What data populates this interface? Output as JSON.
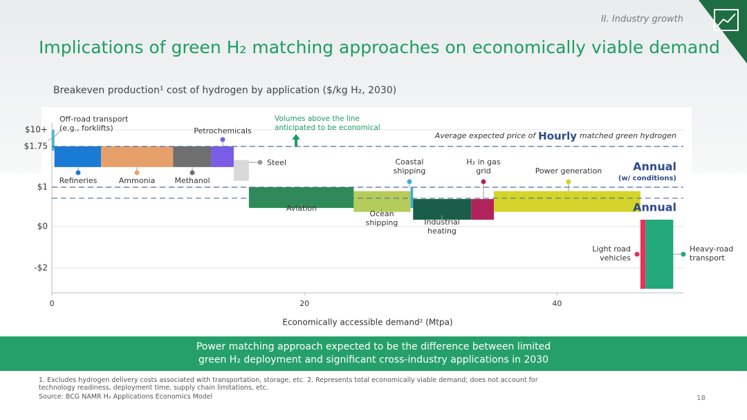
{
  "slide": {
    "section": "II. Industry growth",
    "title": "Implications of green H₂ matching approaches on economically viable demand",
    "subtitle": "Breakeven production¹ cost of hydrogen by application ($/kg H₂, 2030)",
    "banner": "Power matching approach expected to be the difference between limited green H₂ deployment and significant cross-industry applications in 2030",
    "footnotes": "1. Excludes hydrogen delivery costs associated with transportation, storage, etc. 2. Represents total economically viable demand; does not account for technology readiness, deployment time, supply chain limitations, etc.",
    "source": "Source: BCG NAMR H₂ Applications Economics Model",
    "page_number": "18"
  },
  "chart_data": {
    "type": "variwide",
    "x_label": "Economically accessible demand² (Mtpa)",
    "categories": [
      "Off-road transport (e.g., forklifts)",
      "Refineries",
      "Ammonia",
      "Methanol",
      "Petrochemicals",
      "Steel",
      "Aviation",
      "Ocean shipping",
      "Coastal shipping",
      "Industrial heating",
      "H₂ in gas grid",
      "Power generation",
      "Light road vehicles",
      "Heavy-road transport"
    ],
    "widths": [
      0.2,
      3.7,
      5.7,
      3.0,
      1.8,
      1.2,
      8.3,
      4.5,
      0.2,
      4.6,
      1.8,
      11.6,
      0.4,
      2.2
    ],
    "values": [
      10,
      1.8,
      1.8,
      1.8,
      1.8,
      1.5,
      1.0,
      0.9,
      1.0,
      0.7,
      0.7,
      0.9,
      -3,
      -3
    ],
    "colors": [
      "#3fb8d9",
      "#1a7bd4",
      "#e8a06a",
      "#6f6f6f",
      "#7b5ce6",
      "#d9d9d9",
      "#2e8b57",
      "#b5cc5a",
      "#3ab0d8",
      "#1a5e4a",
      "#b0245a",
      "#d4d42a",
      "#e8325a",
      "#22a87a"
    ],
    "xlim": [
      0,
      50
    ],
    "xticks": [
      0,
      20,
      40
    ],
    "ylim": [
      -3.2,
      10
    ],
    "yticks": [
      {
        "value": 10,
        "label": "$10+"
      },
      {
        "value": 1.75,
        "label": "$1.75"
      },
      {
        "value": 1,
        "label": "$1"
      },
      {
        "value": 0,
        "label": "$0"
      },
      {
        "value": -2,
        "label": "-$2"
      }
    ],
    "grid": true,
    "reference_lines": [
      {
        "value": 1.75,
        "label": [
          "Average expected price of",
          "Hourly",
          "matched green hydrogen"
        ]
      },
      {
        "value": 1.0,
        "label": [
          "Annual",
          "(w/ conditions)"
        ]
      },
      {
        "value": 0.72,
        "label": [
          "Annual"
        ]
      }
    ],
    "annotation": "Volumes above the line anticipated to be economical"
  }
}
